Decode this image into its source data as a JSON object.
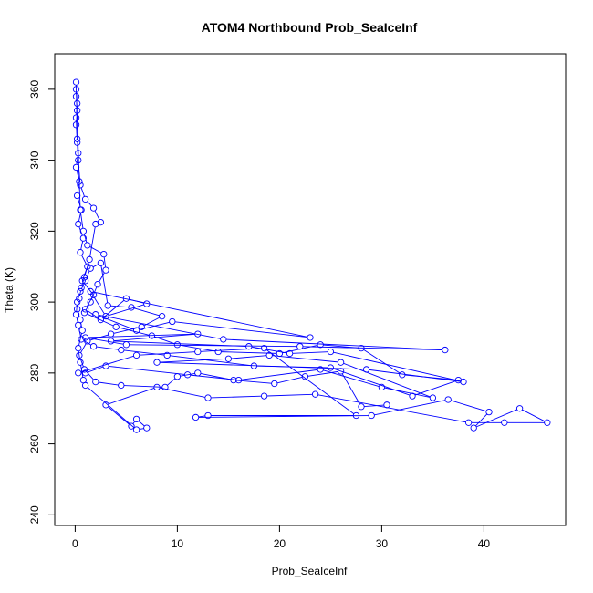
{
  "chart_data": {
    "type": "scatter",
    "title": "ATOM4 Northbound Prob_SeaIceInf",
    "xlabel": "Prob_SeaIceInf",
    "ylabel": "Theta (K)",
    "xlim": [
      -2,
      48
    ],
    "ylim": [
      237,
      370
    ],
    "xticks": [
      0,
      10,
      20,
      30,
      40
    ],
    "yticks": [
      240,
      260,
      280,
      300,
      320,
      340,
      360
    ],
    "grid": false,
    "legend": "none",
    "series": [
      {
        "connected": true,
        "marker": "open-circle",
        "points": [
          [
            0.1,
            362
          ],
          [
            0.1,
            358
          ],
          [
            0.2,
            354
          ],
          [
            0.1,
            350
          ],
          [
            0.2,
            346
          ],
          [
            0.3,
            342
          ],
          [
            0.1,
            338
          ],
          [
            0.4,
            334
          ],
          [
            0.2,
            330
          ],
          [
            0.6,
            326
          ],
          [
            0.3,
            322
          ],
          [
            0.8,
            318
          ],
          [
            0.5,
            314
          ],
          [
            1.2,
            310
          ],
          [
            0.7,
            306
          ],
          [
            1.8,
            302
          ],
          [
            1.0,
            298
          ],
          [
            2.5,
            295
          ],
          [
            5.0,
            301
          ],
          [
            7.0,
            299.5
          ],
          [
            3.0,
            296
          ],
          [
            1.5,
            303
          ],
          [
            23.0,
            290
          ],
          [
            9.5,
            294.5
          ],
          [
            6.0,
            292
          ],
          [
            2.0,
            296.5
          ],
          [
            14.5,
            289.5
          ],
          [
            36.2,
            286.5
          ],
          [
            22.0,
            287.5
          ],
          [
            5.0,
            288
          ],
          [
            1.0,
            290
          ],
          [
            12.0,
            291
          ],
          [
            3.5,
            289
          ],
          [
            17.0,
            287.5
          ],
          [
            21.0,
            285.5
          ],
          [
            25.0,
            286
          ],
          [
            38.0,
            277.5
          ],
          [
            28.5,
            281
          ],
          [
            8.0,
            283
          ],
          [
            15.0,
            284
          ],
          [
            19.0,
            285
          ],
          [
            26.0,
            283
          ],
          [
            35.0,
            273
          ],
          [
            30.0,
            276
          ],
          [
            24.0,
            281
          ],
          [
            16.0,
            278
          ],
          [
            11.0,
            279.5
          ],
          [
            3.0,
            282
          ],
          [
            1.0,
            280
          ],
          [
            0.3,
            280
          ],
          [
            6.0,
            285
          ],
          [
            12.0,
            286
          ],
          [
            18.5,
            287
          ],
          [
            27.5,
            268
          ],
          [
            13.0,
            268
          ],
          [
            11.8,
            267.5
          ],
          [
            29.0,
            268
          ],
          [
            36.5,
            272.5
          ],
          [
            40.5,
            269
          ],
          [
            39.0,
            264.5
          ],
          [
            43.5,
            270
          ],
          [
            46.2,
            266
          ],
          [
            42.0,
            266
          ],
          [
            38.5,
            266
          ],
          [
            23.5,
            274
          ],
          [
            18.5,
            273.5
          ],
          [
            13.0,
            273
          ],
          [
            8.0,
            276
          ],
          [
            3.0,
            271
          ],
          [
            5.5,
            265
          ],
          [
            6.0,
            267
          ],
          [
            7.0,
            264.5
          ],
          [
            6.0,
            264
          ],
          [
            1.0,
            276.5
          ],
          [
            0.8,
            278
          ],
          [
            0.5,
            283
          ],
          [
            0.3,
            287
          ],
          [
            0.7,
            292
          ],
          [
            0.5,
            295
          ],
          [
            0.2,
            298
          ],
          [
            0.4,
            301
          ],
          [
            0.6,
            304
          ],
          [
            0.9,
            307
          ],
          [
            1.4,
            312
          ],
          [
            2.0,
            322
          ],
          [
            2.5,
            322.5
          ],
          [
            1.8,
            326.5
          ],
          [
            1.0,
            329
          ],
          [
            0.5,
            333
          ],
          [
            0.3,
            340
          ],
          [
            0.2,
            345
          ],
          [
            0.1,
            352
          ],
          [
            0.2,
            356
          ],
          [
            0.1,
            360
          ],
          [
            0.5,
            326
          ],
          [
            0.8,
            320
          ],
          [
            1.2,
            316
          ],
          [
            2.8,
            313.5
          ],
          [
            3.0,
            309
          ],
          [
            2.2,
            305
          ],
          [
            1.5,
            300
          ],
          [
            0.9,
            297
          ],
          [
            4.0,
            293
          ],
          [
            7.5,
            290.5
          ],
          [
            10.0,
            288
          ],
          [
            14.0,
            286
          ],
          [
            20.0,
            285.5
          ],
          [
            24.0,
            288
          ],
          [
            28.0,
            287
          ],
          [
            32.0,
            279.5
          ],
          [
            37.5,
            278
          ],
          [
            33.0,
            273.5
          ],
          [
            25.0,
            281.5
          ],
          [
            17.5,
            282
          ],
          [
            9.0,
            285
          ],
          [
            4.5,
            286.5
          ],
          [
            1.8,
            287.5
          ],
          [
            0.6,
            289.5
          ],
          [
            0.3,
            293.5
          ],
          [
            0.1,
            296.5
          ],
          [
            0.2,
            300
          ],
          [
            0.5,
            303
          ],
          [
            1.0,
            306
          ],
          [
            1.5,
            309.5
          ],
          [
            2.5,
            311
          ],
          [
            3.2,
            299
          ],
          [
            5.5,
            298.5
          ],
          [
            8.5,
            296
          ],
          [
            6.5,
            293
          ],
          [
            3.5,
            291
          ],
          [
            1.2,
            289
          ],
          [
            0.4,
            285
          ],
          [
            0.9,
            281
          ],
          [
            2.0,
            277.5
          ],
          [
            4.5,
            276.5
          ],
          [
            8.8,
            276
          ],
          [
            10.0,
            279
          ],
          [
            12.0,
            280
          ],
          [
            15.5,
            278
          ],
          [
            19.5,
            277
          ],
          [
            22.5,
            279
          ],
          [
            26.0,
            280.5
          ],
          [
            28.0,
            270.5
          ],
          [
            30.5,
            271
          ]
        ]
      }
    ]
  }
}
